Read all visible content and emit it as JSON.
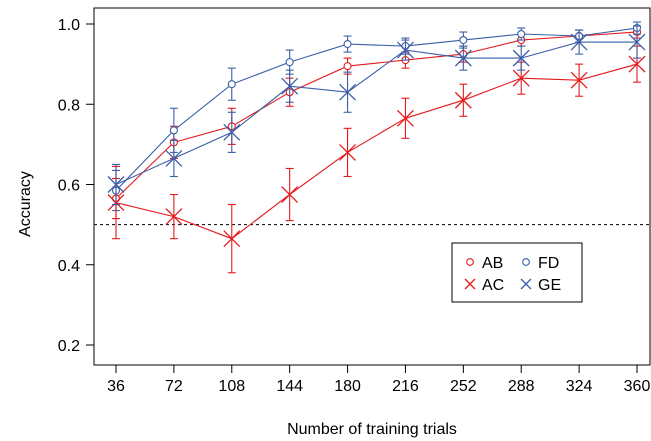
{
  "chart_data": {
    "type": "line",
    "xlabel": "Number of training trials",
    "ylabel": "Accuracy",
    "x": [
      36,
      72,
      108,
      144,
      180,
      216,
      252,
      288,
      324,
      360
    ],
    "xlim": [
      36,
      360
    ],
    "ylim": [
      0.2,
      1.0
    ],
    "yticks": [
      0.2,
      0.4,
      0.6,
      0.8,
      1.0
    ],
    "ytick_labels": [
      "0.2",
      "0.4",
      "0.6",
      "0.8",
      "1.0"
    ],
    "xtick_labels": [
      "36",
      "72",
      "108",
      "144",
      "180",
      "216",
      "252",
      "288",
      "324",
      "360"
    ],
    "reference_line": {
      "y": 0.5,
      "style": "dashed"
    },
    "grid": false,
    "legend_position": "lower-right",
    "colors": {
      "red": "#e41a1c",
      "blue": "#3a5fa8"
    },
    "series": [
      {
        "name": "AB",
        "marker": "circle",
        "color": "#e41a1c",
        "values": [
          0.565,
          0.705,
          0.745,
          0.83,
          0.895,
          0.91,
          0.925,
          0.96,
          0.97,
          0.98
        ],
        "err": [
          0.05,
          0.04,
          0.045,
          0.035,
          0.02,
          0.02,
          0.02,
          0.015,
          0.015,
          0.015
        ]
      },
      {
        "name": "FD",
        "marker": "circle",
        "color": "#3a5fa8",
        "values": [
          0.585,
          0.735,
          0.85,
          0.905,
          0.95,
          0.945,
          0.96,
          0.975,
          0.97,
          0.99
        ],
        "err": [
          0.05,
          0.055,
          0.04,
          0.03,
          0.02,
          0.02,
          0.02,
          0.015,
          0.015,
          0.015
        ]
      },
      {
        "name": "AC",
        "marker": "x",
        "color": "#e41a1c",
        "values": [
          0.555,
          0.52,
          0.465,
          0.575,
          0.68,
          0.765,
          0.81,
          0.865,
          0.86,
          0.9
        ],
        "err": [
          0.09,
          0.055,
          0.085,
          0.065,
          0.06,
          0.05,
          0.04,
          0.04,
          0.04,
          0.045
        ]
      },
      {
        "name": "GE",
        "marker": "x",
        "color": "#3a5fa8",
        "values": [
          0.6,
          0.665,
          0.73,
          0.845,
          0.83,
          0.935,
          0.915,
          0.915,
          0.955,
          0.955
        ],
        "err": [
          0.05,
          0.045,
          0.05,
          0.04,
          0.05,
          0.025,
          0.03,
          0.03,
          0.03,
          0.04
        ]
      }
    ]
  }
}
